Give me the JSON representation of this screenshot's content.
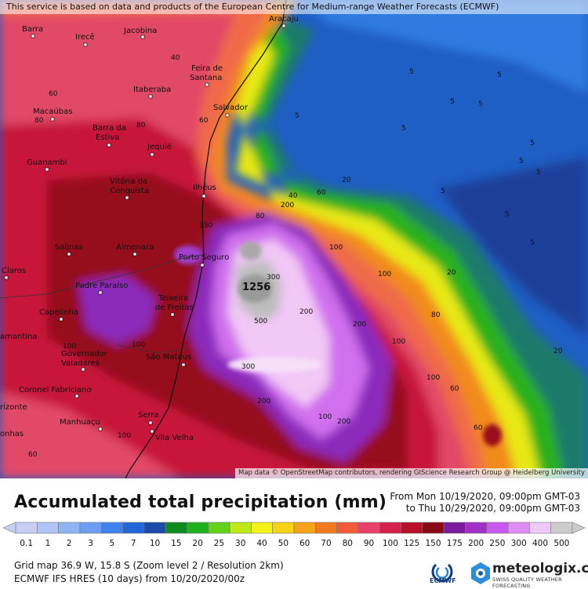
{
  "attribution_top": "This service is based on data and products of the European Centre for Medium-range Weather Forecasts (ECMWF)",
  "attribution_map": "Map data © OpenStreetMap contributors, rendering GIScience Research Group @ Heidelberg University",
  "title": "Accumulated total precipitation (mm)",
  "period_from": "From Mon 10/19/2020, 09:00pm GMT-03",
  "period_to": "to Thu 10/29/2020, 09:00pm GMT-03",
  "footer_line1": "Grid map 36.9 W, 15.8 S (Zoom level 2 / Resolution 2km)",
  "footer_line2": "ECMWF IFS HRES (10 days) from 10/20/2020/00z",
  "max_value_label": "1256",
  "logos": {
    "ecmwf": "ECMWF",
    "meteologix_name": "meteologix.com",
    "meteologix_tagline": "SWISS QUALITY WEATHER FORECASTING"
  },
  "legend": {
    "labels": [
      "0.1",
      "1",
      "2",
      "3",
      "5",
      "7",
      "10",
      "15",
      "20",
      "25",
      "30",
      "40",
      "50",
      "60",
      "70",
      "80",
      "90",
      "100",
      "125",
      "150",
      "175",
      "200",
      "250",
      "300",
      "400",
      "500"
    ],
    "colors": [
      "#c8cdf2",
      "#b0c4f5",
      "#8fb4f5",
      "#6a9ef2",
      "#3f82ee",
      "#2366d8",
      "#1b4aa8",
      "#0f8a1e",
      "#1fb01f",
      "#62d21a",
      "#bfe818",
      "#f2f21a",
      "#f6d218",
      "#f6a418",
      "#f27a1c",
      "#f25a3a",
      "#e8406a",
      "#d4204a",
      "#b8102a",
      "#8c0a18",
      "#7a1a9c",
      "#a030c8",
      "#c85af0",
      "#e08cf5",
      "#f0c8f8",
      "#cccccc"
    ]
  },
  "cities": [
    {
      "name": "Aracaju"
    },
    {
      "name": "Barra"
    },
    {
      "name": "Irecê"
    },
    {
      "name": "Jacobina"
    },
    {
      "name": "Feira de"
    },
    {
      "name": "Santana"
    },
    {
      "name": "Itaberaba"
    },
    {
      "name": "Salvador"
    },
    {
      "name": "Macaúbas"
    },
    {
      "name": "Barra da"
    },
    {
      "name": "Estiva"
    },
    {
      "name": "Jequié"
    },
    {
      "name": "Guanambi"
    },
    {
      "name": "Vitória da"
    },
    {
      "name": "Conquista"
    },
    {
      "name": "Ilhéus"
    },
    {
      "name": "Salinas"
    },
    {
      "name": "Almenara"
    },
    {
      "name": "Porto Seguro"
    },
    {
      "name": "Padre Paraíso"
    },
    {
      "name": "Teixeira"
    },
    {
      "name": "de Freitas"
    },
    {
      "name": "Capelinha"
    },
    {
      "name": "Governador"
    },
    {
      "name": "Valadares"
    },
    {
      "name": "São Mateus"
    },
    {
      "name": "Coronel Fabriciano"
    },
    {
      "name": "Manhuaçu"
    },
    {
      "name": "Serra"
    },
    {
      "name": "Vila Velha"
    },
    {
      "name": "Claros"
    },
    {
      "name": "amantina"
    },
    {
      "name": "rizonte"
    },
    {
      "name": "onhas"
    }
  ],
  "contour_values": [
    "5",
    "5",
    "5",
    "5",
    "5",
    "5",
    "5",
    "5",
    "5",
    "5",
    "5",
    "5",
    "20",
    "20",
    "20",
    "40",
    "40",
    "60",
    "60",
    "60",
    "60",
    "60",
    "60",
    "80",
    "80",
    "80",
    "80",
    "100",
    "100",
    "100",
    "100",
    "100",
    "100",
    "100",
    "100",
    "150",
    "200",
    "200",
    "200",
    "200",
    "200",
    "300",
    "300",
    "500"
  ]
}
